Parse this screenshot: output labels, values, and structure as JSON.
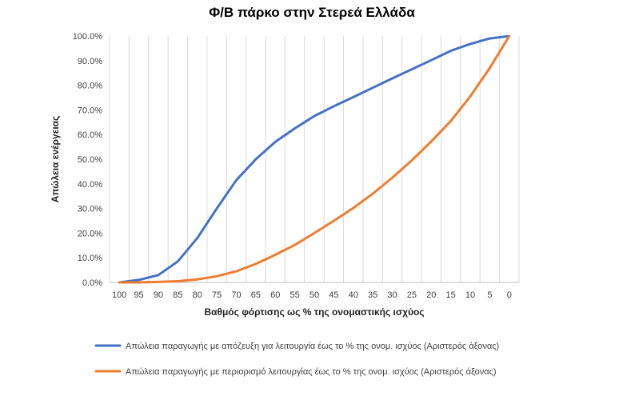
{
  "chart_data": {
    "type": "line",
    "title": "Φ/Β πάρκο στην Στερεά Ελλάδα",
    "xlabel": "Βαθμός φόρτισης ως % της ονομαστικής ισχύος",
    "ylabel": "Απώλεια ενέργειας",
    "x": [
      100,
      95,
      90,
      85,
      80,
      75,
      70,
      65,
      60,
      55,
      50,
      45,
      40,
      35,
      30,
      25,
      20,
      15,
      10,
      5,
      0
    ],
    "x_tick_labels": [
      "100",
      "95",
      "90",
      "85",
      "80",
      "75",
      "70",
      "65",
      "60",
      "55",
      "50",
      "45",
      "40",
      "35",
      "30",
      "25",
      "20",
      "15",
      "10",
      "5",
      "0"
    ],
    "x_reversed": true,
    "ylim": [
      0,
      100
    ],
    "y_ticks": [
      0,
      10,
      20,
      30,
      40,
      50,
      60,
      70,
      80,
      90,
      100
    ],
    "y_tick_labels": [
      "0.0%",
      "10.0%",
      "20.0%",
      "30.0%",
      "40.0%",
      "50.0%",
      "60.0%",
      "70.0%",
      "80.0%",
      "90.0%",
      "100.0%"
    ],
    "grid": "vertical",
    "legend_position": "bottom",
    "series": [
      {
        "name": "Απώλεια παραγωγής με απόζευξη για λειτουργία έως το % της ονομ. ισχύος (Αριστερός άξονας)",
        "color": "#4472c4",
        "values": [
          0.0,
          1.0,
          3.0,
          8.5,
          18.0,
          30.0,
          41.5,
          50.0,
          57.0,
          62.5,
          67.5,
          71.5,
          75.2,
          79.0,
          82.8,
          86.5,
          90.2,
          94.0,
          96.8,
          99.0,
          100.0
        ]
      },
      {
        "name": "Απώλεια παραγωγής με περιορισμό λειτουργίας έως το % της ονομ. ισχύος (Αριστερός άξονας)",
        "color": "#ed7d31",
        "values": [
          0.0,
          0.0,
          0.2,
          0.5,
          1.2,
          2.5,
          4.5,
          7.5,
          11.2,
          15.2,
          20.0,
          25.0,
          30.2,
          36.0,
          42.5,
          49.5,
          57.2,
          65.5,
          75.5,
          87.0,
          100.0
        ]
      }
    ]
  }
}
